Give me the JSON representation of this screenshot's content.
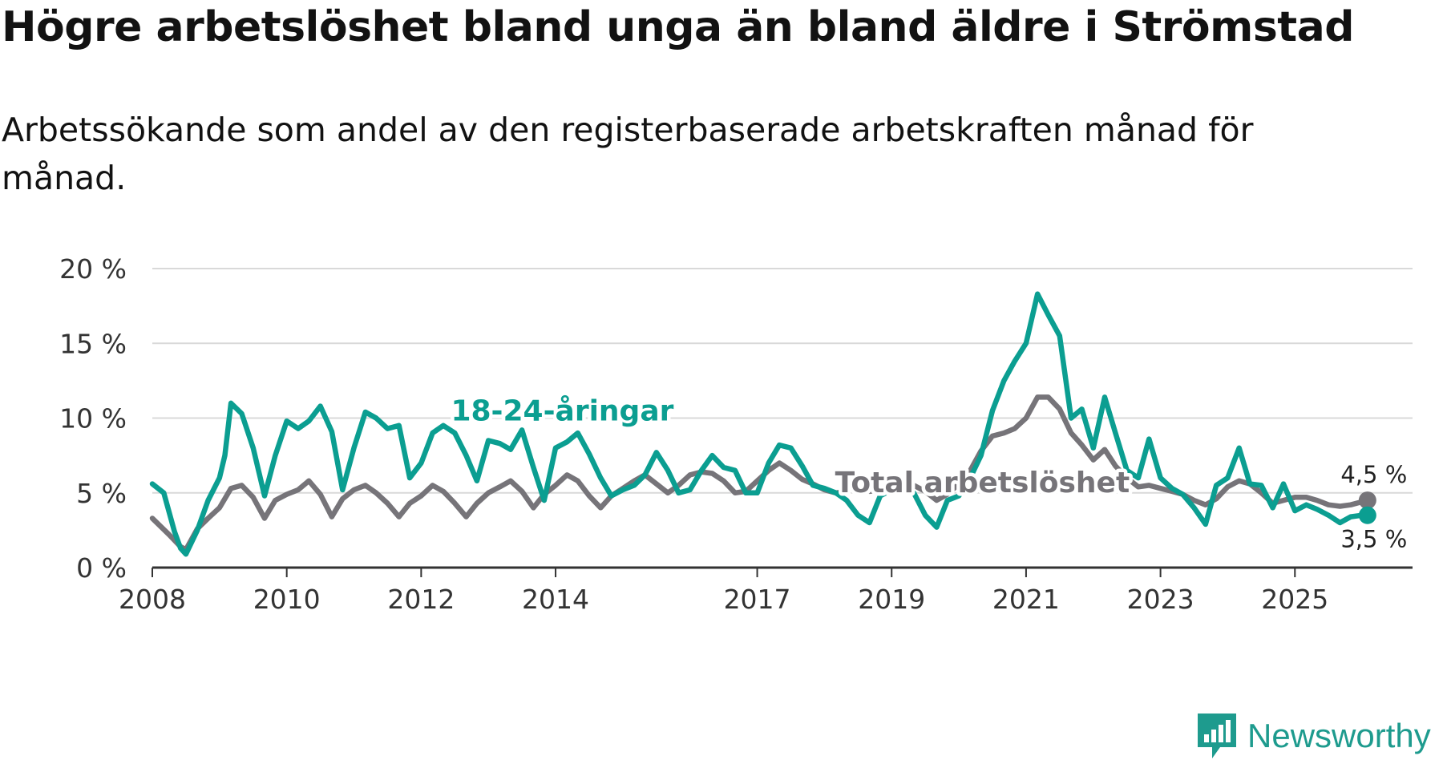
{
  "title": "Högre arbetslöshet bland unga än bland äldre i Strömstad",
  "subtitle": "Arbetssökande som andel av den registerbaserade arbetskraften månad för månad.",
  "logo": {
    "text": "Newsworthy",
    "icon": "bar-chart-icon"
  },
  "colors": {
    "youth": "#0b9e91",
    "total": "#767479",
    "grid": "#d9d9d9",
    "axis": "#333333"
  },
  "chart_data": {
    "type": "line",
    "title": "Högre arbetslöshet bland unga än bland äldre i Strömstad",
    "xlabel": "",
    "ylabel": "",
    "ylim": [
      0,
      20
    ],
    "xlim": [
      2008,
      2026.75
    ],
    "grid": true,
    "y_ticks": [
      {
        "value": 0,
        "label": "0 %"
      },
      {
        "value": 5,
        "label": "5 %"
      },
      {
        "value": 10,
        "label": "10 %"
      },
      {
        "value": 15,
        "label": "15 %"
      },
      {
        "value": 20,
        "label": "20 %"
      }
    ],
    "x_ticks": [
      {
        "value": 2008,
        "label": "2008"
      },
      {
        "value": 2010,
        "label": "2010"
      },
      {
        "value": 2012,
        "label": "2012"
      },
      {
        "value": 2014,
        "label": "2014"
      },
      {
        "value": 2017,
        "label": "2017"
      },
      {
        "value": 2019,
        "label": "2019"
      },
      {
        "value": 2021,
        "label": "2021"
      },
      {
        "value": 2023,
        "label": "2023"
      },
      {
        "value": 2025,
        "label": "2025"
      }
    ],
    "series": [
      {
        "name": "Total arbetslöshet",
        "label": "Total arbetslöshet",
        "color": "#767479",
        "last_value_label": "4,5 %",
        "points": [
          [
            2008.0,
            3.3
          ],
          [
            2008.25,
            2.2
          ],
          [
            2008.42,
            1.4
          ],
          [
            2008.5,
            1.2
          ],
          [
            2008.67,
            2.6
          ],
          [
            2008.83,
            3.3
          ],
          [
            2009.0,
            4.0
          ],
          [
            2009.17,
            5.3
          ],
          [
            2009.33,
            5.5
          ],
          [
            2009.5,
            4.7
          ],
          [
            2009.67,
            3.3
          ],
          [
            2009.83,
            4.5
          ],
          [
            2010.0,
            4.9
          ],
          [
            2010.17,
            5.2
          ],
          [
            2010.33,
            5.8
          ],
          [
            2010.5,
            4.9
          ],
          [
            2010.67,
            3.4
          ],
          [
            2010.83,
            4.6
          ],
          [
            2011.0,
            5.2
          ],
          [
            2011.17,
            5.5
          ],
          [
            2011.33,
            5.0
          ],
          [
            2011.5,
            4.3
          ],
          [
            2011.67,
            3.4
          ],
          [
            2011.83,
            4.3
          ],
          [
            2012.0,
            4.8
          ],
          [
            2012.17,
            5.5
          ],
          [
            2012.33,
            5.1
          ],
          [
            2012.5,
            4.3
          ],
          [
            2012.67,
            3.4
          ],
          [
            2012.83,
            4.3
          ],
          [
            2013.0,
            5.0
          ],
          [
            2013.17,
            5.4
          ],
          [
            2013.33,
            5.8
          ],
          [
            2013.5,
            5.1
          ],
          [
            2013.67,
            4.0
          ],
          [
            2013.83,
            4.9
          ],
          [
            2014.0,
            5.5
          ],
          [
            2014.17,
            6.2
          ],
          [
            2014.33,
            5.8
          ],
          [
            2014.5,
            4.8
          ],
          [
            2014.67,
            4.0
          ],
          [
            2014.83,
            4.8
          ],
          [
            2015.0,
            5.3
          ],
          [
            2015.17,
            5.8
          ],
          [
            2015.33,
            6.2
          ],
          [
            2015.5,
            5.6
          ],
          [
            2015.67,
            5.0
          ],
          [
            2015.83,
            5.5
          ],
          [
            2016.0,
            6.2
          ],
          [
            2016.17,
            6.4
          ],
          [
            2016.33,
            6.3
          ],
          [
            2016.5,
            5.8
          ],
          [
            2016.67,
            5.0
          ],
          [
            2016.83,
            5.1
          ],
          [
            2017.0,
            5.8
          ],
          [
            2017.17,
            6.5
          ],
          [
            2017.33,
            7.0
          ],
          [
            2017.5,
            6.5
          ],
          [
            2017.67,
            5.9
          ],
          [
            2017.83,
            5.6
          ],
          [
            2018.0,
            5.2
          ],
          [
            2018.17,
            5.0
          ],
          [
            2018.33,
            5.1
          ],
          [
            2018.5,
            5.3
          ],
          [
            2018.67,
            5.1
          ],
          [
            2018.83,
            5.2
          ],
          [
            2019.0,
            5.4
          ],
          [
            2019.17,
            5.6
          ],
          [
            2019.33,
            5.5
          ],
          [
            2019.5,
            5.1
          ],
          [
            2019.67,
            4.5
          ],
          [
            2019.83,
            4.9
          ],
          [
            2020.0,
            5.6
          ],
          [
            2020.17,
            6.5
          ],
          [
            2020.33,
            7.8
          ],
          [
            2020.5,
            8.8
          ],
          [
            2020.67,
            9.0
          ],
          [
            2020.83,
            9.3
          ],
          [
            2021.0,
            10.0
          ],
          [
            2021.17,
            11.4
          ],
          [
            2021.33,
            11.4
          ],
          [
            2021.5,
            10.6
          ],
          [
            2021.67,
            9.0
          ],
          [
            2021.83,
            8.2
          ],
          [
            2022.0,
            7.2
          ],
          [
            2022.17,
            7.9
          ],
          [
            2022.33,
            6.8
          ],
          [
            2022.5,
            6.0
          ],
          [
            2022.67,
            5.4
          ],
          [
            2022.83,
            5.5
          ],
          [
            2023.0,
            5.3
          ],
          [
            2023.17,
            5.1
          ],
          [
            2023.33,
            4.9
          ],
          [
            2023.5,
            4.5
          ],
          [
            2023.67,
            4.2
          ],
          [
            2023.83,
            4.6
          ],
          [
            2024.0,
            5.4
          ],
          [
            2024.17,
            5.8
          ],
          [
            2024.33,
            5.6
          ],
          [
            2024.5,
            5.0
          ],
          [
            2024.67,
            4.3
          ],
          [
            2024.83,
            4.5
          ],
          [
            2025.0,
            4.7
          ],
          [
            2025.17,
            4.7
          ],
          [
            2025.33,
            4.5
          ],
          [
            2025.5,
            4.2
          ],
          [
            2025.67,
            4.1
          ],
          [
            2025.83,
            4.2
          ],
          [
            2026.0,
            4.4
          ],
          [
            2026.08,
            4.5
          ]
        ]
      },
      {
        "name": "18-24-åringar",
        "label": "18-24-åringar",
        "color": "#0b9e91",
        "last_value_label": "3,5 %",
        "points": [
          [
            2008.0,
            5.6
          ],
          [
            2008.17,
            5.0
          ],
          [
            2008.33,
            2.4
          ],
          [
            2008.42,
            1.3
          ],
          [
            2008.5,
            0.9
          ],
          [
            2008.67,
            2.5
          ],
          [
            2008.83,
            4.5
          ],
          [
            2009.0,
            6.0
          ],
          [
            2009.08,
            7.5
          ],
          [
            2009.17,
            11.0
          ],
          [
            2009.33,
            10.3
          ],
          [
            2009.5,
            8.0
          ],
          [
            2009.67,
            4.8
          ],
          [
            2009.83,
            7.5
          ],
          [
            2010.0,
            9.8
          ],
          [
            2010.17,
            9.3
          ],
          [
            2010.33,
            9.8
          ],
          [
            2010.5,
            10.8
          ],
          [
            2010.67,
            9.1
          ],
          [
            2010.83,
            5.2
          ],
          [
            2011.0,
            8.0
          ],
          [
            2011.17,
            10.4
          ],
          [
            2011.33,
            10.0
          ],
          [
            2011.5,
            9.3
          ],
          [
            2011.67,
            9.5
          ],
          [
            2011.83,
            6.0
          ],
          [
            2012.0,
            7.0
          ],
          [
            2012.17,
            9.0
          ],
          [
            2012.33,
            9.5
          ],
          [
            2012.5,
            9.0
          ],
          [
            2012.67,
            7.5
          ],
          [
            2012.83,
            5.8
          ],
          [
            2013.0,
            8.5
          ],
          [
            2013.17,
            8.3
          ],
          [
            2013.33,
            7.9
          ],
          [
            2013.5,
            9.2
          ],
          [
            2013.67,
            6.7
          ],
          [
            2013.83,
            4.5
          ],
          [
            2014.0,
            8.0
          ],
          [
            2014.17,
            8.4
          ],
          [
            2014.33,
            9.0
          ],
          [
            2014.5,
            7.6
          ],
          [
            2014.67,
            6.0
          ],
          [
            2014.83,
            4.8
          ],
          [
            2015.0,
            5.2
          ],
          [
            2015.17,
            5.5
          ],
          [
            2015.33,
            6.2
          ],
          [
            2015.5,
            7.7
          ],
          [
            2015.67,
            6.5
          ],
          [
            2015.83,
            5.0
          ],
          [
            2016.0,
            5.2
          ],
          [
            2016.17,
            6.5
          ],
          [
            2016.33,
            7.5
          ],
          [
            2016.5,
            6.7
          ],
          [
            2016.67,
            6.5
          ],
          [
            2016.83,
            5.0
          ],
          [
            2017.0,
            5.0
          ],
          [
            2017.17,
            7.0
          ],
          [
            2017.33,
            8.2
          ],
          [
            2017.5,
            8.0
          ],
          [
            2017.67,
            6.8
          ],
          [
            2017.83,
            5.5
          ],
          [
            2018.0,
            5.3
          ],
          [
            2018.17,
            5.0
          ],
          [
            2018.33,
            4.5
          ],
          [
            2018.5,
            3.5
          ],
          [
            2018.67,
            3.0
          ],
          [
            2018.83,
            4.8
          ],
          [
            2019.0,
            5.2
          ],
          [
            2019.17,
            5.5
          ],
          [
            2019.33,
            5.0
          ],
          [
            2019.5,
            3.5
          ],
          [
            2019.67,
            2.7
          ],
          [
            2019.83,
            4.5
          ],
          [
            2020.0,
            4.8
          ],
          [
            2020.17,
            6.0
          ],
          [
            2020.33,
            7.5
          ],
          [
            2020.5,
            10.5
          ],
          [
            2020.67,
            12.5
          ],
          [
            2020.83,
            13.8
          ],
          [
            2021.0,
            15.0
          ],
          [
            2021.17,
            18.3
          ],
          [
            2021.33,
            16.9
          ],
          [
            2021.5,
            15.5
          ],
          [
            2021.67,
            10.0
          ],
          [
            2021.83,
            10.6
          ],
          [
            2022.0,
            8.0
          ],
          [
            2022.17,
            11.4
          ],
          [
            2022.33,
            9.0
          ],
          [
            2022.5,
            6.5
          ],
          [
            2022.67,
            6.0
          ],
          [
            2022.83,
            8.6
          ],
          [
            2023.0,
            6.0
          ],
          [
            2023.17,
            5.3
          ],
          [
            2023.33,
            4.9
          ],
          [
            2023.5,
            4.0
          ],
          [
            2023.67,
            2.9
          ],
          [
            2023.83,
            5.5
          ],
          [
            2024.0,
            6.0
          ],
          [
            2024.17,
            8.0
          ],
          [
            2024.33,
            5.6
          ],
          [
            2024.5,
            5.5
          ],
          [
            2024.67,
            4.0
          ],
          [
            2024.83,
            5.6
          ],
          [
            2025.0,
            3.8
          ],
          [
            2025.17,
            4.2
          ],
          [
            2025.33,
            3.9
          ],
          [
            2025.5,
            3.5
          ],
          [
            2025.67,
            3.0
          ],
          [
            2025.83,
            3.4
          ],
          [
            2026.0,
            3.5
          ],
          [
            2026.08,
            3.5
          ]
        ]
      }
    ]
  }
}
